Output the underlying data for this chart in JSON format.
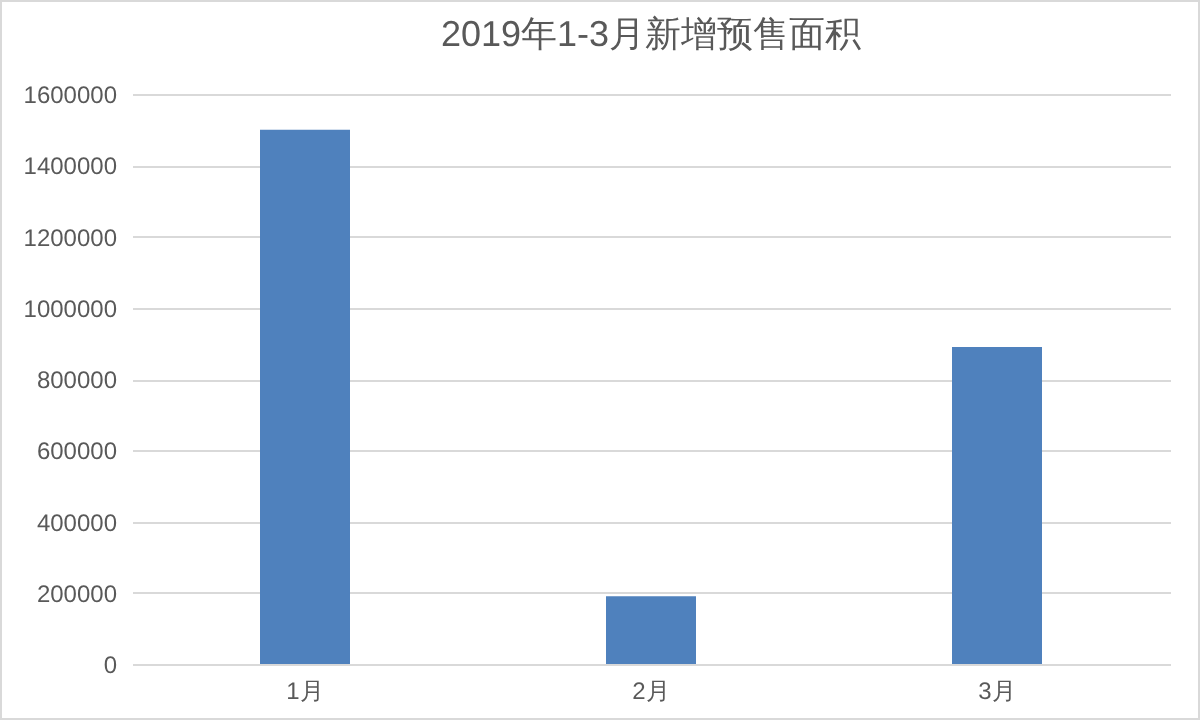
{
  "chart_data": {
    "type": "bar",
    "title": "2019年1-3月新增预售面积",
    "categories": [
      "1月",
      "2月",
      "3月"
    ],
    "values": [
      1500000,
      190000,
      890000
    ],
    "color": "#4f81bd",
    "ylim": [
      0,
      1600000
    ],
    "yticks": [
      0,
      200000,
      400000,
      600000,
      800000,
      1000000,
      1200000,
      1400000,
      1600000
    ],
    "grid": "y"
  }
}
